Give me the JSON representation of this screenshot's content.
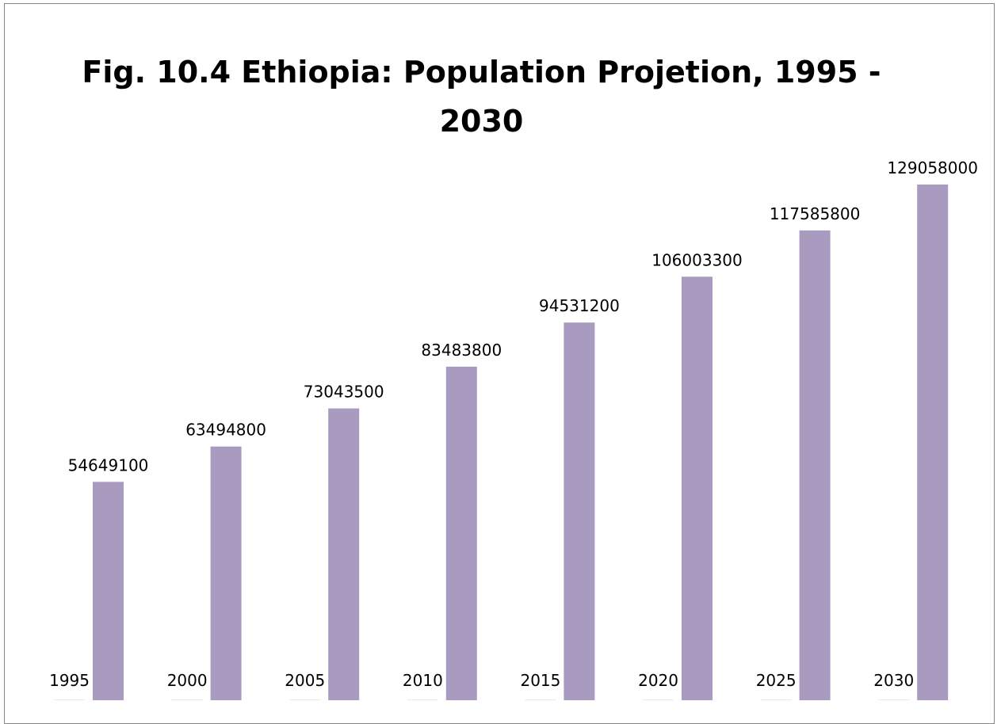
{
  "chart_data": {
    "type": "bar",
    "title": "Fig. 10.4    Ethiopia: Population Projetion, 1995 - 2030",
    "title_lines": [
      "Fig. 10.4    Ethiopia: Population Projetion, 1995 -",
      "2030"
    ],
    "categories": [
      "1995",
      "2000",
      "2005",
      "2010",
      "2015",
      "2020",
      "2025",
      "2030"
    ],
    "series": [
      {
        "values": [
          0,
          0,
          0,
          0,
          0,
          0,
          0,
          0
        ],
        "color": "#f0e6e6"
      },
      {
        "values": [
          54649100,
          63494800,
          73043500,
          83483800,
          94531200,
          106003300,
          117585800,
          129058000
        ],
        "color": "#a99bc0"
      }
    ],
    "data_labels": [
      "54649100",
      "63494800",
      "73043500",
      "83483800",
      "94531200",
      "106003300",
      "117585800",
      "129058000"
    ],
    "xlabel": "",
    "ylabel": "",
    "ylim": [
      0,
      145000000
    ],
    "grid": false,
    "legend": "none",
    "category_labels_position": "inside-bottom-left"
  }
}
